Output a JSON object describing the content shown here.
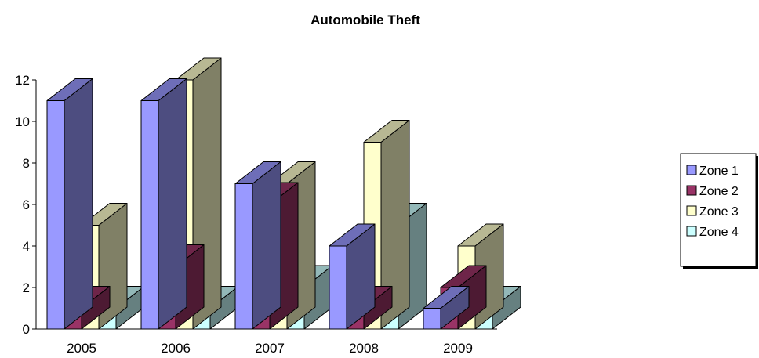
{
  "chart_data": {
    "type": "bar",
    "title": "Automobile Theft",
    "categories": [
      "2005",
      "2006",
      "2007",
      "2008",
      "2009"
    ],
    "series": [
      {
        "name": "Zone 1",
        "values": [
          11,
          11,
          7,
          4,
          1
        ],
        "color": "#9999FF"
      },
      {
        "name": "Zone 2",
        "values": [
          1,
          3,
          6,
          1,
          2
        ],
        "color": "#993366"
      },
      {
        "name": "Zone 3",
        "values": [
          5,
          12,
          7,
          9,
          4
        ],
        "color": "#FFFFCC"
      },
      {
        "name": "Zone 4",
        "values": [
          1,
          1,
          2,
          5,
          1
        ],
        "color": "#CCFFFF"
      }
    ],
    "yticks": [
      "0",
      "2",
      "4",
      "6",
      "8",
      "10",
      "12"
    ],
    "ylim": [
      0,
      12
    ],
    "xlabel": "",
    "ylabel": "",
    "grid": false,
    "legend_position": "right",
    "style": "3d-clustered-column"
  }
}
